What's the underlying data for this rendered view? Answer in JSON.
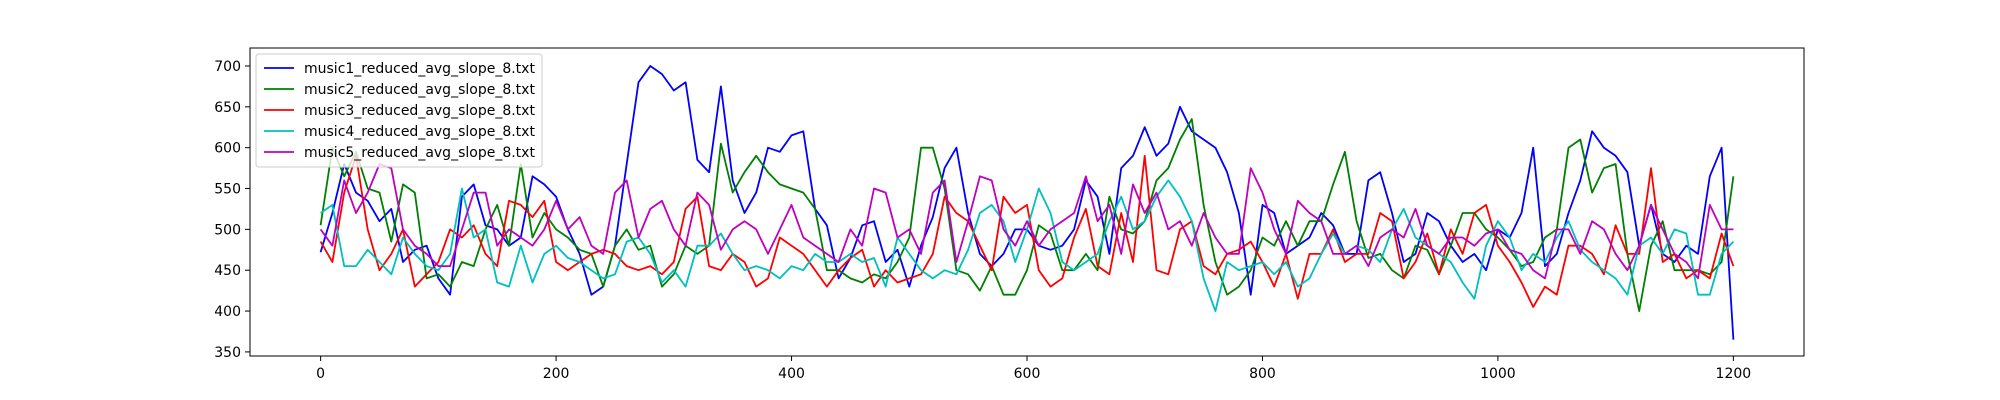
{
  "chart_data": {
    "type": "line",
    "xlim": [
      -60,
      1260
    ],
    "ylim": [
      345,
      722
    ],
    "xticks": [
      0,
      200,
      400,
      600,
      800,
      1000,
      1200
    ],
    "yticks": [
      350,
      400,
      450,
      500,
      550,
      600,
      650,
      700
    ],
    "grid": false,
    "legend_position": "top-left",
    "series": [
      {
        "name": "music1_reduced_avg_slope_8.txt",
        "color": "#0000ff",
        "x": [
          0,
          10,
          20,
          30,
          40,
          50,
          60,
          70,
          80,
          90,
          100,
          110,
          120,
          130,
          140,
          150,
          160,
          170,
          180,
          190,
          200,
          210,
          220,
          230,
          240,
          250,
          260,
          270,
          280,
          290,
          300,
          310,
          320,
          330,
          340,
          350,
          360,
          370,
          380,
          390,
          400,
          410,
          420,
          430,
          440,
          450,
          460,
          470,
          480,
          490,
          500,
          510,
          520,
          530,
          540,
          550,
          560,
          570,
          580,
          590,
          600,
          610,
          620,
          630,
          640,
          650,
          660,
          670,
          680,
          690,
          700,
          710,
          720,
          730,
          740,
          750,
          760,
          770,
          780,
          790,
          800,
          810,
          820,
          830,
          840,
          850,
          860,
          870,
          880,
          890,
          900,
          910,
          920,
          930,
          940,
          950,
          960,
          970,
          980,
          990,
          1000,
          1010,
          1020,
          1030,
          1040,
          1050,
          1060,
          1070,
          1080,
          1090,
          1100,
          1110,
          1120,
          1130,
          1140,
          1150,
          1160,
          1170,
          1180,
          1190,
          1200
        ],
        "values": [
          472,
          520,
          580,
          545,
          535,
          510,
          525,
          460,
          475,
          480,
          440,
          420,
          540,
          555,
          505,
          500,
          480,
          490,
          565,
          555,
          540,
          500,
          470,
          420,
          430,
          480,
          580,
          680,
          700,
          690,
          670,
          680,
          585,
          570,
          675,
          560,
          520,
          545,
          600,
          595,
          615,
          620,
          525,
          505,
          440,
          465,
          505,
          510,
          460,
          475,
          430,
          480,
          515,
          575,
          600,
          520,
          470,
          455,
          470,
          500,
          500,
          480,
          475,
          480,
          500,
          560,
          540,
          470,
          575,
          590,
          625,
          590,
          605,
          650,
          620,
          610,
          600,
          570,
          520,
          420,
          530,
          520,
          470,
          480,
          490,
          520,
          505,
          470,
          470,
          560,
          570,
          520,
          460,
          470,
          520,
          510,
          480,
          460,
          470,
          450,
          500,
          490,
          520,
          600,
          455,
          470,
          520,
          560,
          620,
          600,
          590,
          570,
          480,
          530,
          470,
          460,
          480,
          470,
          565,
          600,
          365
        ]
      },
      {
        "name": "music2_reduced_avg_slope_8.txt",
        "color": "#008000",
        "x": [
          0,
          10,
          20,
          30,
          40,
          50,
          60,
          70,
          80,
          90,
          100,
          110,
          120,
          130,
          140,
          150,
          160,
          170,
          180,
          190,
          200,
          210,
          220,
          230,
          240,
          250,
          260,
          270,
          280,
          290,
          300,
          310,
          320,
          330,
          340,
          350,
          360,
          370,
          380,
          390,
          400,
          410,
          420,
          430,
          440,
          450,
          460,
          470,
          480,
          490,
          500,
          510,
          520,
          530,
          540,
          550,
          560,
          570,
          580,
          590,
          600,
          610,
          620,
          630,
          640,
          650,
          660,
          670,
          680,
          690,
          700,
          710,
          720,
          730,
          740,
          750,
          760,
          770,
          780,
          790,
          800,
          810,
          820,
          830,
          840,
          850,
          860,
          870,
          880,
          890,
          900,
          910,
          920,
          930,
          940,
          950,
          960,
          970,
          980,
          990,
          1000,
          1010,
          1020,
          1030,
          1040,
          1050,
          1060,
          1070,
          1080,
          1090,
          1100,
          1110,
          1120,
          1130,
          1140,
          1150,
          1160,
          1170,
          1180,
          1190,
          1200
        ],
        "values": [
          505,
          600,
          565,
          595,
          550,
          545,
          485,
          555,
          545,
          440,
          445,
          430,
          460,
          455,
          500,
          530,
          480,
          580,
          490,
          520,
          500,
          490,
          475,
          470,
          430,
          480,
          500,
          475,
          480,
          430,
          445,
          480,
          470,
          480,
          605,
          545,
          570,
          590,
          570,
          555,
          550,
          545,
          525,
          450,
          450,
          440,
          435,
          445,
          440,
          460,
          490,
          600,
          600,
          550,
          450,
          445,
          425,
          455,
          420,
          420,
          450,
          505,
          495,
          450,
          450,
          470,
          450,
          540,
          500,
          495,
          510,
          560,
          575,
          610,
          635,
          530,
          460,
          420,
          430,
          450,
          490,
          480,
          510,
          480,
          510,
          510,
          555,
          595,
          510,
          465,
          470,
          450,
          440,
          480,
          475,
          445,
          480,
          520,
          520,
          500,
          490,
          475,
          455,
          460,
          490,
          500,
          600,
          610,
          545,
          575,
          580,
          470,
          400,
          480,
          510,
          450,
          450,
          450,
          445,
          460,
          565
        ]
      },
      {
        "name": "music3_reduced_avg_slope_8.txt",
        "color": "#ff0000",
        "x": [
          0,
          10,
          20,
          30,
          40,
          50,
          60,
          70,
          80,
          90,
          100,
          110,
          120,
          130,
          140,
          150,
          160,
          170,
          180,
          190,
          200,
          210,
          220,
          230,
          240,
          250,
          260,
          270,
          280,
          290,
          300,
          310,
          320,
          330,
          340,
          350,
          360,
          370,
          380,
          390,
          400,
          410,
          420,
          430,
          440,
          450,
          460,
          470,
          480,
          490,
          500,
          510,
          520,
          530,
          540,
          550,
          560,
          570,
          580,
          590,
          600,
          610,
          620,
          630,
          640,
          650,
          660,
          670,
          680,
          690,
          700,
          710,
          720,
          730,
          740,
          750,
          760,
          770,
          780,
          790,
          800,
          810,
          820,
          830,
          840,
          850,
          860,
          870,
          880,
          890,
          900,
          910,
          920,
          930,
          940,
          950,
          960,
          970,
          980,
          990,
          1000,
          1010,
          1020,
          1030,
          1040,
          1050,
          1060,
          1070,
          1080,
          1090,
          1100,
          1110,
          1120,
          1130,
          1140,
          1150,
          1160,
          1170,
          1180,
          1190,
          1200
        ],
        "values": [
          485,
          460,
          545,
          590,
          500,
          450,
          470,
          500,
          430,
          445,
          460,
          500,
          490,
          505,
          470,
          455,
          535,
          530,
          515,
          535,
          460,
          450,
          460,
          470,
          475,
          470,
          455,
          450,
          455,
          445,
          460,
          525,
          540,
          455,
          450,
          470,
          460,
          430,
          440,
          490,
          480,
          470,
          450,
          430,
          450,
          465,
          475,
          430,
          450,
          435,
          440,
          445,
          470,
          540,
          520,
          510,
          480,
          450,
          540,
          520,
          530,
          450,
          430,
          440,
          490,
          525,
          455,
          445,
          520,
          460,
          590,
          450,
          445,
          500,
          510,
          455,
          445,
          470,
          475,
          485,
          460,
          430,
          470,
          415,
          470,
          470,
          500,
          460,
          470,
          470,
          520,
          510,
          440,
          460,
          495,
          445,
          500,
          470,
          520,
          530,
          480,
          460,
          435,
          405,
          430,
          420,
          480,
          480,
          470,
          445,
          505,
          470,
          470,
          575,
          460,
          470,
          440,
          450,
          440,
          495,
          455
        ]
      },
      {
        "name": "music4_reduced_avg_slope_8.txt",
        "color": "#00bfbf",
        "x": [
          0,
          10,
          20,
          30,
          40,
          50,
          60,
          70,
          80,
          90,
          100,
          110,
          120,
          130,
          140,
          150,
          160,
          170,
          180,
          190,
          200,
          210,
          220,
          230,
          240,
          250,
          260,
          270,
          280,
          290,
          300,
          310,
          320,
          330,
          340,
          350,
          360,
          370,
          380,
          390,
          400,
          410,
          420,
          430,
          440,
          450,
          460,
          470,
          480,
          490,
          500,
          510,
          520,
          530,
          540,
          550,
          560,
          570,
          580,
          590,
          600,
          610,
          620,
          630,
          640,
          650,
          660,
          670,
          680,
          690,
          700,
          710,
          720,
          730,
          740,
          750,
          760,
          770,
          780,
          790,
          800,
          810,
          820,
          830,
          840,
          850,
          860,
          870,
          880,
          890,
          900,
          910,
          920,
          930,
          940,
          950,
          960,
          970,
          980,
          990,
          1000,
          1010,
          1020,
          1030,
          1040,
          1050,
          1060,
          1070,
          1080,
          1090,
          1100,
          1110,
          1120,
          1130,
          1140,
          1150,
          1160,
          1170,
          1180,
          1190,
          1200
        ],
        "values": [
          520,
          530,
          455,
          455,
          475,
          460,
          445,
          490,
          470,
          455,
          450,
          470,
          550,
          490,
          500,
          435,
          430,
          480,
          435,
          470,
          480,
          465,
          460,
          450,
          440,
          445,
          485,
          490,
          470,
          435,
          450,
          430,
          480,
          480,
          495,
          470,
          450,
          455,
          450,
          440,
          455,
          450,
          470,
          460,
          460,
          470,
          460,
          465,
          430,
          490,
          470,
          450,
          440,
          450,
          445,
          475,
          520,
          530,
          510,
          460,
          500,
          550,
          520,
          460,
          450,
          460,
          470,
          510,
          540,
          500,
          510,
          540,
          560,
          540,
          510,
          440,
          400,
          460,
          450,
          455,
          460,
          445,
          460,
          430,
          440,
          470,
          495,
          470,
          480,
          475,
          460,
          500,
          525,
          490,
          480,
          470,
          460,
          435,
          415,
          480,
          510,
          490,
          450,
          470,
          460,
          490,
          510,
          475,
          460,
          450,
          440,
          420,
          480,
          490,
          470,
          500,
          495,
          420,
          420,
          470,
          485
        ]
      },
      {
        "name": "music5_reduced_avg_slope_8.txt",
        "color": "#bf00bf",
        "x": [
          0,
          10,
          20,
          30,
          40,
          50,
          60,
          70,
          80,
          90,
          100,
          110,
          120,
          130,
          140,
          150,
          160,
          170,
          180,
          190,
          200,
          210,
          220,
          230,
          240,
          250,
          260,
          270,
          280,
          290,
          300,
          310,
          320,
          330,
          340,
          350,
          360,
          370,
          380,
          390,
          400,
          410,
          420,
          430,
          440,
          450,
          460,
          470,
          480,
          490,
          500,
          510,
          520,
          530,
          540,
          550,
          560,
          570,
          580,
          590,
          600,
          610,
          620,
          630,
          640,
          650,
          660,
          670,
          680,
          690,
          700,
          710,
          720,
          730,
          740,
          750,
          760,
          770,
          780,
          790,
          800,
          810,
          820,
          830,
          840,
          850,
          860,
          870,
          880,
          890,
          900,
          910,
          920,
          930,
          940,
          950,
          960,
          970,
          980,
          990,
          1000,
          1010,
          1020,
          1030,
          1040,
          1050,
          1060,
          1070,
          1080,
          1090,
          1100,
          1110,
          1120,
          1130,
          1140,
          1150,
          1160,
          1170,
          1180,
          1190,
          1200
        ],
        "values": [
          500,
          480,
          560,
          520,
          545,
          580,
          575,
          500,
          480,
          470,
          455,
          455,
          500,
          545,
          545,
          480,
          500,
          490,
          480,
          500,
          535,
          500,
          515,
          480,
          470,
          545,
          560,
          490,
          525,
          535,
          500,
          480,
          545,
          530,
          475,
          500,
          510,
          500,
          470,
          500,
          530,
          490,
          480,
          470,
          460,
          500,
          480,
          550,
          545,
          490,
          500,
          470,
          545,
          560,
          460,
          510,
          565,
          560,
          500,
          480,
          510,
          480,
          500,
          510,
          520,
          565,
          510,
          530,
          470,
          555,
          520,
          545,
          500,
          510,
          480,
          520,
          490,
          470,
          470,
          575,
          545,
          500,
          470,
          535,
          520,
          510,
          470,
          470,
          480,
          455,
          490,
          500,
          490,
          525,
          480,
          470,
          490,
          490,
          480,
          495,
          500,
          475,
          470,
          450,
          440,
          500,
          500,
          470,
          510,
          500,
          470,
          450,
          480,
          530,
          500,
          470,
          460,
          440,
          530,
          500,
          500
        ]
      }
    ]
  }
}
